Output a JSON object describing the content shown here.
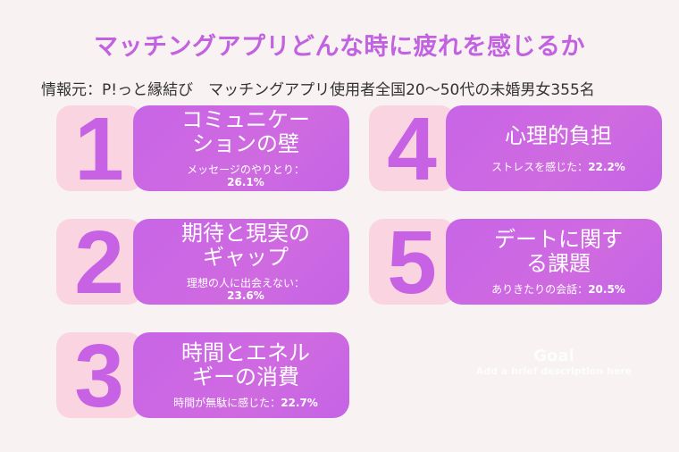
{
  "title": "マッチングアプリどんな時に疲れを感じるか",
  "source": "情報元：P!っと縁結び　マッチングアプリ使用者全国20〜50代の未婚男女355名",
  "colors": {
    "accent": "#c862e4",
    "panel": "#c865e6",
    "number_box": "#fbd4e2",
    "background": "#f8f2f2"
  },
  "items": [
    {
      "rank": "1",
      "title_line1": "コミュニケー",
      "title_line2": "ションの壁",
      "detail": "メッセージのやりとり：",
      "percent": "26.1%"
    },
    {
      "rank": "2",
      "title_line1": "期待と現実の",
      "title_line2": "ギャップ",
      "detail": "理想の人に出会えない：",
      "percent": "23.6%"
    },
    {
      "rank": "3",
      "title_line1": "時間とエネル",
      "title_line2": "ギーの消費",
      "detail": "時間が無駄に感じた：",
      "percent": "22.7%"
    },
    {
      "rank": "4",
      "title_line1": "心理的負担",
      "title_line2": "",
      "detail": "ストレスを感じた：",
      "percent": "22.2%"
    },
    {
      "rank": "5",
      "title_line1": "デートに関す",
      "title_line2": "る課題",
      "detail": "ありきたりの会話：",
      "percent": "20.5%"
    }
  ],
  "placeholder": {
    "heading": "Goal",
    "description": "Add a brief description here"
  }
}
